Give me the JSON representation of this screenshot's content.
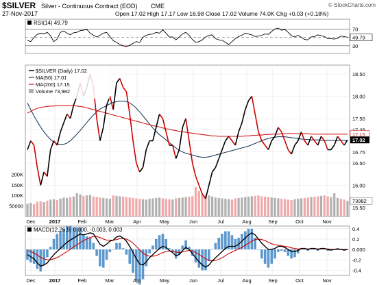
{
  "header": {
    "symbol": "$SILVER",
    "description": "Silver - Continuous Contract (EOD)",
    "exchange": "CME",
    "date": "27-Nov-2017",
    "quote": "Open 17.02  High 17.17  Low 16.98  Close 17.02  Volume 74.0K  Chg +0.03 (+0.18%)",
    "watermark": "© StockCharts.com"
  },
  "rsi_panel": {
    "label": "RSI(14) 49.79",
    "current": 49.79,
    "axis_ticks": [
      "70",
      "50",
      "30"
    ],
    "current_tag": "49.79",
    "series": [
      43,
      40,
      50,
      57,
      60,
      58,
      62,
      54,
      40,
      46,
      62,
      65,
      60,
      56,
      61,
      62,
      66,
      67,
      69,
      60,
      55,
      51,
      55,
      60,
      62,
      52,
      42,
      38,
      33,
      30,
      28,
      31,
      36,
      40,
      38,
      50,
      55,
      57,
      58,
      62,
      60,
      68,
      60,
      51,
      51,
      44,
      51,
      58,
      62,
      55,
      45,
      38,
      40,
      44,
      51,
      55,
      56,
      47,
      44,
      43,
      38,
      33,
      40,
      47,
      52,
      55,
      60,
      58,
      56,
      52,
      53,
      55,
      58,
      57,
      64,
      70,
      72,
      67,
      69,
      62,
      54,
      51,
      55,
      50,
      45,
      44,
      51,
      52,
      56,
      54,
      52,
      47,
      47,
      46,
      48,
      53,
      52,
      50
    ]
  },
  "colors": {
    "price_line": "#000000",
    "price_line_up": "#000000",
    "price_line_down": "#cc0000",
    "ma50": "#1f3d5c",
    "ma200": "#d11a1a",
    "volume_up": "#b0b0b0",
    "volume_down": "#f2a8a8",
    "macd_line": "#000000",
    "macd_signal": "#cc0000",
    "histogram": "#3f86c6",
    "grid": "#e3e3e3"
  },
  "chart_data": {
    "type": "line",
    "x_labels": [
      "Dec",
      "2017",
      "Feb",
      "Mar",
      "Apr",
      "May",
      "Jun",
      "Jul",
      "Aug",
      "Sep",
      "Oct",
      "Nov"
    ],
    "price_panel": {
      "legend": [
        "$SILVER (Daily) 17.02",
        "MA(50) 17.01",
        "MA(200) 17.15",
        "Volume 73,982"
      ],
      "ylim": [
        15.3,
        18.7
      ],
      "y_ticks": [
        15.5,
        16.0,
        16.5,
        16.75,
        17.0,
        17.25,
        17.5,
        18.0,
        18.5
      ],
      "y_tick_labels": [
        "15.50",
        "16.00",
        "16.50",
        "16.75",
        "17.00",
        "17.25",
        "17.50",
        "18.00",
        "18.50"
      ],
      "current_tags": [
        "17.15",
        "17.02"
      ],
      "series": [
        {
          "name": "$SILVER (Daily) 17.02",
          "values": [
            16.8,
            17.0,
            16.9,
            16.4,
            16.0,
            16.3,
            16.2,
            16.8,
            17.0,
            16.9,
            17.2,
            17.4,
            17.6,
            17.5,
            17.8,
            18.0,
            18.3,
            18.0,
            18.2,
            18.5,
            18.2,
            17.5,
            17.0,
            17.3,
            17.8,
            18.0,
            17.7,
            18.3,
            18.4,
            18.2,
            18.1,
            17.6,
            17.0,
            16.5,
            16.3,
            16.4,
            16.8,
            17.0,
            17.0,
            17.3,
            17.6,
            17.5,
            17.2,
            16.9,
            16.9,
            16.6,
            16.8,
            17.3,
            17.5,
            17.0,
            16.5,
            16.2,
            16.0,
            15.8,
            15.7,
            16.0,
            16.3,
            16.4,
            16.6,
            16.8,
            17.0,
            17.1,
            17.0,
            16.9,
            17.2,
            17.4,
            17.7,
            17.9,
            18.0,
            17.6,
            17.2,
            17.0,
            16.9,
            16.8,
            17.0,
            17.1,
            17.3,
            17.2,
            17.0,
            16.8,
            16.7,
            16.9,
            17.0,
            17.2,
            17.0,
            16.9,
            17.1,
            17.0,
            16.9,
            17.1,
            17.0,
            16.8,
            16.8,
            16.9,
            17.1,
            17.0,
            16.9,
            17.02
          ]
        },
        {
          "name": "MA(50) 17.01",
          "values": [
            17.85,
            17.7,
            17.56,
            17.43,
            17.31,
            17.2,
            17.11,
            17.03,
            16.97,
            16.93,
            16.92,
            16.92,
            16.95,
            17.0,
            17.07,
            17.15,
            17.23,
            17.32,
            17.41,
            17.5,
            17.58,
            17.65,
            17.71,
            17.75,
            17.79,
            17.83,
            17.86,
            17.88,
            17.89,
            17.89,
            17.88,
            17.85,
            17.8,
            17.73,
            17.65,
            17.56,
            17.47,
            17.38,
            17.29,
            17.21,
            17.14,
            17.08,
            17.02,
            16.96,
            16.9,
            16.84,
            16.79,
            16.75,
            16.72,
            16.7,
            16.68,
            16.66,
            16.64,
            16.63,
            16.63,
            16.64,
            16.66,
            16.68,
            16.7,
            16.72,
            16.74,
            16.76,
            16.78,
            16.8,
            16.82,
            16.84,
            16.86,
            16.88,
            16.91,
            16.94,
            16.97,
            17.0,
            17.03,
            17.05,
            17.07,
            17.08,
            17.09,
            17.09,
            17.09,
            17.08,
            17.07,
            17.06,
            17.05,
            17.04,
            17.03,
            17.03,
            17.02,
            17.02,
            17.02,
            17.01,
            17.01,
            17.01,
            17.01,
            17.01,
            17.01,
            17.01,
            17.01,
            17.01
          ]
        },
        {
          "name": "MA(200) 17.15",
          "values": [
            17.62,
            17.66,
            17.7,
            17.73,
            17.75,
            17.76,
            17.77,
            17.78,
            17.78,
            17.79,
            17.79,
            17.79,
            17.79,
            17.79,
            17.79,
            17.78,
            17.77,
            17.76,
            17.74,
            17.72,
            17.7,
            17.68,
            17.66,
            17.64,
            17.62,
            17.6,
            17.58,
            17.56,
            17.54,
            17.52,
            17.5,
            17.48,
            17.46,
            17.44,
            17.42,
            17.4,
            17.38,
            17.36,
            17.34,
            17.33,
            17.31,
            17.29,
            17.27,
            17.26,
            17.24,
            17.23,
            17.21,
            17.2,
            17.19,
            17.18,
            17.17,
            17.16,
            17.15,
            17.14,
            17.13,
            17.12,
            17.11,
            17.11,
            17.1,
            17.1,
            17.1,
            17.1,
            17.1,
            17.1,
            17.1,
            17.1,
            17.11,
            17.11,
            17.12,
            17.12,
            17.13,
            17.13,
            17.14,
            17.14,
            17.15,
            17.15,
            17.15,
            17.16,
            17.16,
            17.16,
            17.16,
            17.16,
            17.16,
            17.16,
            17.16,
            17.16,
            17.15,
            17.15,
            17.15,
            17.15,
            17.15,
            17.15,
            17.15,
            17.15,
            17.15,
            17.15,
            17.15,
            17.15
          ]
        }
      ]
    },
    "volume_panel": {
      "name": "Volume 73,982",
      "current": 73982,
      "current_tag": "73982",
      "y_ticks": [
        "200K",
        "150K",
        "100K",
        "50000"
      ],
      "ylim": [
        0,
        260000
      ],
      "values": [
        60000,
        65000,
        58000,
        70000,
        72000,
        68000,
        75000,
        80000,
        82000,
        78000,
        85000,
        90000,
        88000,
        92000,
        95000,
        110000,
        105000,
        98000,
        100000,
        102000,
        95000,
        92000,
        90000,
        88000,
        86000,
        84000,
        100000,
        98000,
        96000,
        94000,
        92000,
        90000,
        88000,
        86000,
        84000,
        82000,
        80000,
        84000,
        86000,
        88000,
        90000,
        86000,
        84000,
        82000,
        80000,
        86000,
        88000,
        90000,
        92000,
        94000,
        96000,
        140000,
        120000,
        110000,
        105000,
        100000,
        95000,
        90000,
        88000,
        86000,
        84000,
        82000,
        80000,
        86000,
        88000,
        90000,
        92000,
        94000,
        96000,
        98000,
        100000,
        96000,
        94000,
        92000,
        90000,
        88000,
        86000,
        84000,
        82000,
        80000,
        78000,
        82000,
        84000,
        86000,
        88000,
        90000,
        92000,
        94000,
        96000,
        98000,
        100000,
        96000,
        92000,
        110000,
        88000,
        84000,
        80000,
        73982
      ]
    },
    "macd_panel": {
      "label": "MACD(12,26,9) 0.000, -0.003, 0.003",
      "ylim": [
        -0.5,
        0.45
      ],
      "y_ticks": [
        0.4,
        0.2,
        0.0,
        -0.2,
        -0.4
      ],
      "y_tick_labels": [
        "0.4",
        "0.2",
        "0.000",
        "-0.2",
        "-0.4"
      ],
      "series": [
        {
          "name": "MACD(12,26,9) 0.000",
          "values": [
            -0.1,
            -0.14,
            -0.18,
            -0.26,
            -0.32,
            -0.3,
            -0.26,
            -0.18,
            -0.1,
            -0.04,
            0.02,
            0.08,
            0.14,
            0.18,
            0.22,
            0.26,
            0.3,
            0.28,
            0.3,
            0.32,
            0.3,
            0.2,
            0.1,
            0.06,
            0.1,
            0.16,
            0.18,
            0.24,
            0.26,
            0.22,
            0.16,
            0.06,
            -0.06,
            -0.18,
            -0.28,
            -0.3,
            -0.24,
            -0.16,
            -0.1,
            -0.04,
            0.02,
            0.06,
            0.04,
            -0.02,
            -0.06,
            -0.12,
            -0.1,
            -0.02,
            0.04,
            0.0,
            -0.08,
            -0.16,
            -0.24,
            -0.3,
            -0.34,
            -0.3,
            -0.22,
            -0.16,
            -0.1,
            -0.04,
            0.02,
            0.06,
            0.06,
            0.06,
            0.1,
            0.16,
            0.22,
            0.28,
            0.32,
            0.28,
            0.2,
            0.12,
            0.06,
            0.0,
            0.0,
            0.02,
            0.06,
            0.06,
            0.04,
            0.0,
            -0.04,
            -0.04,
            -0.02,
            0.02,
            0.02,
            0.0,
            0.02,
            0.02,
            0.0,
            0.02,
            0.02,
            0.0,
            -0.01,
            0.0,
            0.01,
            0.0,
            -0.01,
            0.0
          ]
        },
        {
          "name": "Signal -0.003",
          "values": [
            -0.02,
            -0.04,
            -0.07,
            -0.11,
            -0.15,
            -0.18,
            -0.2,
            -0.2,
            -0.18,
            -0.16,
            -0.12,
            -0.08,
            -0.04,
            0.0,
            0.05,
            0.09,
            0.13,
            0.17,
            0.2,
            0.23,
            0.25,
            0.25,
            0.23,
            0.2,
            0.18,
            0.18,
            0.18,
            0.19,
            0.21,
            0.21,
            0.2,
            0.17,
            0.12,
            0.06,
            -0.01,
            -0.07,
            -0.11,
            -0.13,
            -0.13,
            -0.12,
            -0.09,
            -0.06,
            -0.04,
            -0.03,
            -0.04,
            -0.05,
            -0.06,
            -0.05,
            -0.03,
            -0.02,
            -0.03,
            -0.06,
            -0.1,
            -0.14,
            -0.18,
            -0.21,
            -0.22,
            -0.21,
            -0.19,
            -0.16,
            -0.12,
            -0.08,
            -0.05,
            -0.02,
            0.01,
            0.04,
            0.08,
            0.12,
            0.16,
            0.19,
            0.2,
            0.19,
            0.17,
            0.14,
            0.11,
            0.09,
            0.08,
            0.07,
            0.06,
            0.05,
            0.03,
            0.02,
            0.01,
            0.01,
            0.01,
            0.01,
            0.01,
            0.01,
            0.01,
            0.01,
            0.01,
            0.01,
            0.0,
            0.0,
            0.0,
            0.0,
            0.0,
            0.0
          ]
        }
      ]
    }
  }
}
